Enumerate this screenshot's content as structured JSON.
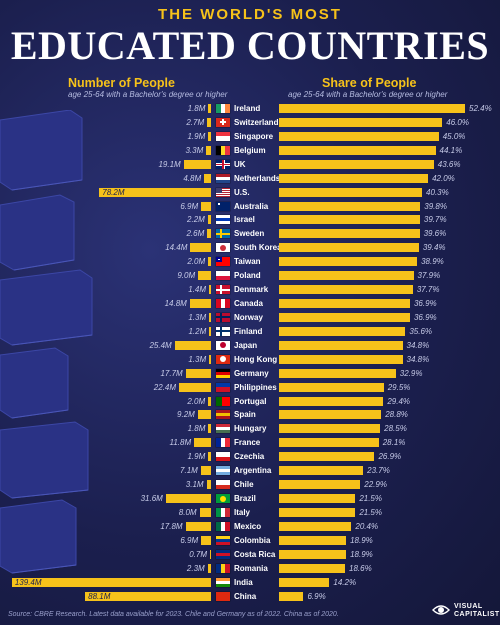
{
  "header": {
    "title_top": "THE WORLD'S MOST",
    "title_main": "EDUCATED COUNTRIES"
  },
  "left_panel": {
    "title": "Number of People",
    "subtitle": "age 25-64 with a Bachelor's degree or higher"
  },
  "right_panel": {
    "title": "Share of People",
    "subtitle": "age 25-64 with a Bachelor's degree or higher"
  },
  "footer": {
    "source": "Source: CBRE Research. Latest data available for 2023. Chile and Germany as of 2022. China as of 2020.",
    "logo_text_1": "VISUAL",
    "logo_text_2": "CAPITALIST"
  },
  "colors": {
    "bar": "#f6c21a",
    "background": "#1b1f4e"
  },
  "chart_data": [
    {
      "type": "bar",
      "orientation": "horizontal",
      "title": "Number of People",
      "subtitle": "age 25-64 with a Bachelor's degree or higher",
      "categories": [
        "Ireland",
        "Switzerland",
        "Singapore",
        "Belgium",
        "UK",
        "Netherlands",
        "U.S.",
        "Australia",
        "Israel",
        "Sweden",
        "South Korea",
        "Taiwan",
        "Poland",
        "Denmark",
        "Canada",
        "Norway",
        "Finland",
        "Japan",
        "Hong Kong",
        "Germany",
        "Philippines",
        "Portugal",
        "Spain",
        "Hungary",
        "France",
        "Czechia",
        "Argentina",
        "Chile",
        "Brazil",
        "Italy",
        "Mexico",
        "Colombia",
        "Costa Rica",
        "Romania",
        "India",
        "China"
      ],
      "values": [
        1.8,
        2.7,
        1.9,
        3.3,
        19.1,
        4.8,
        78.2,
        6.9,
        2.2,
        2.6,
        14.4,
        2.0,
        9.0,
        1.4,
        14.8,
        1.3,
        1.2,
        25.4,
        1.3,
        17.7,
        22.4,
        2.0,
        9.2,
        1.8,
        11.8,
        1.9,
        7.1,
        3.1,
        31.6,
        8.0,
        17.8,
        6.9,
        0.7,
        2.3,
        139.4,
        88.1
      ],
      "labels": [
        "1.8M",
        "2.7M",
        "1.9M",
        "3.3M",
        "19.1M",
        "4.8M",
        "78.2M",
        "6.9M",
        "2.2M",
        "2.6M",
        "14.4M",
        "2.0M",
        "9.0M",
        "1.4M",
        "14.8M",
        "1.3M",
        "1.2M",
        "25.4M",
        "1.3M",
        "17.7M",
        "22.4M",
        "2.0M",
        "9.2M",
        "1.8M",
        "11.8M",
        "1.9M",
        "7.1M",
        "3.1M",
        "31.6M",
        "8.0M",
        "17.8M",
        "6.9M",
        "0.7M",
        "2.3M",
        "139.4M",
        "88.1M"
      ],
      "unit": "millions"
    },
    {
      "type": "bar",
      "orientation": "horizontal",
      "title": "Share of People",
      "subtitle": "age 25-64 with a Bachelor's degree or higher",
      "categories": [
        "Ireland",
        "Switzerland",
        "Singapore",
        "Belgium",
        "UK",
        "Netherlands",
        "U.S.",
        "Australia",
        "Israel",
        "Sweden",
        "South Korea",
        "Taiwan",
        "Poland",
        "Denmark",
        "Canada",
        "Norway",
        "Finland",
        "Japan",
        "Hong Kong",
        "Germany",
        "Philippines",
        "Portugal",
        "Spain",
        "Hungary",
        "France",
        "Czechia",
        "Argentina",
        "Chile",
        "Brazil",
        "Italy",
        "Mexico",
        "Colombia",
        "Costa Rica",
        "Romania",
        "India",
        "China"
      ],
      "values": [
        52.4,
        46.0,
        45.0,
        44.1,
        43.6,
        42.0,
        40.3,
        39.8,
        39.7,
        39.6,
        39.4,
        38.9,
        37.9,
        37.7,
        36.9,
        36.9,
        35.6,
        34.8,
        34.8,
        32.9,
        29.5,
        29.4,
        28.8,
        28.5,
        28.1,
        26.9,
        23.7,
        22.9,
        21.5,
        21.5,
        20.4,
        18.9,
        18.9,
        18.6,
        14.2,
        6.9
      ],
      "labels": [
        "52.4%",
        "46.0%",
        "45.0%",
        "44.1%",
        "43.6%",
        "42.0%",
        "40.3%",
        "39.8%",
        "39.7%",
        "39.6%",
        "39.4%",
        "38.9%",
        "37.9%",
        "37.7%",
        "36.9%",
        "36.9%",
        "35.6%",
        "34.8%",
        "34.8%",
        "32.9%",
        "29.5%",
        "29.4%",
        "28.8%",
        "28.5%",
        "28.1%",
        "26.9%",
        "23.7%",
        "22.9%",
        "21.5%",
        "21.5%",
        "20.4%",
        "18.9%",
        "18.9%",
        "18.6%",
        "14.2%",
        "6.9%"
      ],
      "unit": "percent"
    }
  ],
  "flags": [
    {
      "type": "v3",
      "c": [
        "#169b62",
        "#ffffff",
        "#ff883e"
      ]
    },
    {
      "type": "swiss",
      "c": [
        "#da291c",
        "#ffffff"
      ]
    },
    {
      "type": "h2",
      "c": [
        "#ef3340",
        "#ffffff"
      ]
    },
    {
      "type": "v3",
      "c": [
        "#000000",
        "#fdda24",
        "#ef3340"
      ]
    },
    {
      "type": "uk",
      "c": [
        "#012169",
        "#ffffff",
        "#c8102e"
      ]
    },
    {
      "type": "h3",
      "c": [
        "#ae1c28",
        "#ffffff",
        "#21468b"
      ]
    },
    {
      "type": "us",
      "c": [
        "#b22234",
        "#ffffff",
        "#3c3b6e"
      ]
    },
    {
      "type": "canton",
      "c": [
        "#012169",
        "#012169",
        "#ffffff"
      ]
    },
    {
      "type": "h3",
      "c": [
        "#ffffff",
        "#0038b8",
        "#ffffff"
      ]
    },
    {
      "type": "nordic",
      "c": [
        "#006aa7",
        "#fecc00"
      ]
    },
    {
      "type": "disc",
      "c": [
        "#ffffff",
        "#cd2e3a",
        "#0047a0"
      ]
    },
    {
      "type": "canton",
      "c": [
        "#fe0000",
        "#000095",
        "#ffffff"
      ]
    },
    {
      "type": "h2",
      "c": [
        "#ffffff",
        "#dc143c"
      ]
    },
    {
      "type": "nordic",
      "c": [
        "#c8102e",
        "#ffffff"
      ]
    },
    {
      "type": "v3",
      "c": [
        "#d80621",
        "#ffffff",
        "#d80621"
      ]
    },
    {
      "type": "nordic",
      "c": [
        "#ba0c2f",
        "#00205b"
      ]
    },
    {
      "type": "nordic",
      "c": [
        "#ffffff",
        "#002f6c"
      ]
    },
    {
      "type": "disc",
      "c": [
        "#ffffff",
        "#bc002d",
        "#bc002d"
      ]
    },
    {
      "type": "disc",
      "c": [
        "#de2910",
        "#ffffff",
        "#ffffff"
      ]
    },
    {
      "type": "h3",
      "c": [
        "#000000",
        "#dd0000",
        "#ffce00"
      ]
    },
    {
      "type": "h2",
      "c": [
        "#0038a8",
        "#ce1126"
      ]
    },
    {
      "type": "v2",
      "c": [
        "#006600",
        "#ff0000"
      ]
    },
    {
      "type": "h3",
      "c": [
        "#aa151b",
        "#f1bf00",
        "#aa151b"
      ]
    },
    {
      "type": "h3",
      "c": [
        "#ce2939",
        "#ffffff",
        "#477050"
      ]
    },
    {
      "type": "v3",
      "c": [
        "#002395",
        "#ffffff",
        "#ed2939"
      ]
    },
    {
      "type": "h2",
      "c": [
        "#ffffff",
        "#d7141a"
      ]
    },
    {
      "type": "h3",
      "c": [
        "#74acdf",
        "#ffffff",
        "#74acdf"
      ]
    },
    {
      "type": "h2",
      "c": [
        "#ffffff",
        "#d52b1e"
      ]
    },
    {
      "type": "disc",
      "c": [
        "#009c3b",
        "#ffdf00",
        "#002776"
      ]
    },
    {
      "type": "v3",
      "c": [
        "#009246",
        "#ffffff",
        "#ce2b37"
      ]
    },
    {
      "type": "v3",
      "c": [
        "#006847",
        "#ffffff",
        "#ce1126"
      ]
    },
    {
      "type": "h3",
      "c": [
        "#fcd116",
        "#003893",
        "#ce1126"
      ]
    },
    {
      "type": "h3",
      "c": [
        "#002b7f",
        "#ce1126",
        "#002b7f"
      ]
    },
    {
      "type": "v3",
      "c": [
        "#002b7f",
        "#fcd116",
        "#ce1126"
      ]
    },
    {
      "type": "h3",
      "c": [
        "#ff9933",
        "#ffffff",
        "#138808"
      ]
    },
    {
      "type": "h2",
      "c": [
        "#de2910",
        "#de2910"
      ]
    }
  ]
}
